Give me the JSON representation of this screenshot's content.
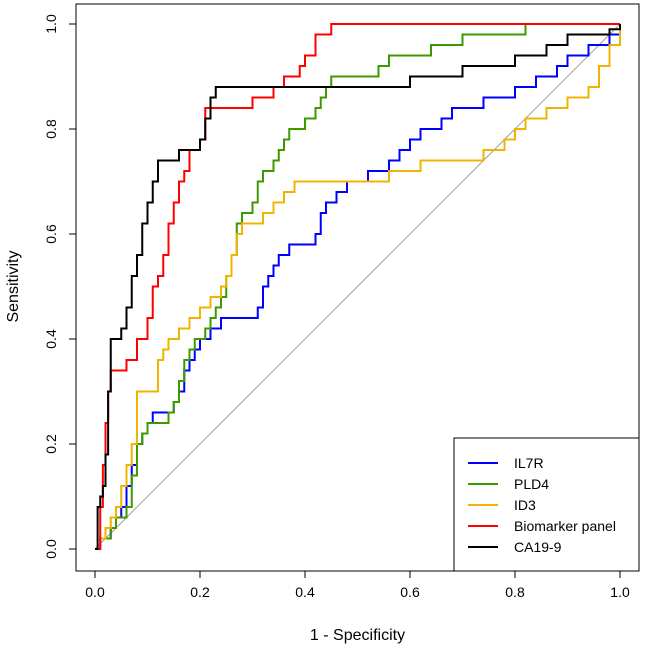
{
  "chart_data": {
    "type": "line",
    "title": "",
    "xlabel": "1 - Specificity",
    "ylabel": "Sensitivity",
    "xlim": [
      0,
      1
    ],
    "ylim": [
      0,
      1
    ],
    "xticks": [
      "0.0",
      "0.2",
      "0.4",
      "0.6",
      "0.8",
      "1.0"
    ],
    "yticks": [
      "0.0",
      "0.2",
      "0.4",
      "0.6",
      "0.8",
      "1.0"
    ],
    "grid": false,
    "legend_position": "bottom-right",
    "reference_line": {
      "name": "chance",
      "color": "#a0a0a0",
      "x": [
        0,
        1
      ],
      "y": [
        0,
        1
      ]
    },
    "series": [
      {
        "name": "IL7R",
        "color": "#0000ff",
        "x": [
          0,
          0.01,
          0.02,
          0.03,
          0.04,
          0.05,
          0.06,
          0.07,
          0.08,
          0.09,
          0.1,
          0.11,
          0.12,
          0.13,
          0.14,
          0.15,
          0.16,
          0.17,
          0.18,
          0.19,
          0.2,
          0.21,
          0.22,
          0.23,
          0.24,
          0.25,
          0.26,
          0.27,
          0.28,
          0.29,
          0.3,
          0.31,
          0.32,
          0.33,
          0.34,
          0.35,
          0.36,
          0.37,
          0.38,
          0.4,
          0.42,
          0.43,
          0.44,
          0.46,
          0.48,
          0.5,
          0.52,
          0.54,
          0.56,
          0.58,
          0.6,
          0.62,
          0.64,
          0.66,
          0.68,
          0.7,
          0.72,
          0.74,
          0.76,
          0.78,
          0.8,
          0.82,
          0.84,
          0.86,
          0.88,
          0.9,
          0.92,
          0.94,
          0.96,
          0.98,
          1.0,
          1.0
        ],
        "y": [
          0,
          0.02,
          0.02,
          0.04,
          0.06,
          0.08,
          0.12,
          0.16,
          0.2,
          0.22,
          0.24,
          0.26,
          0.26,
          0.26,
          0.26,
          0.28,
          0.3,
          0.34,
          0.36,
          0.38,
          0.4,
          0.4,
          0.42,
          0.42,
          0.44,
          0.44,
          0.44,
          0.44,
          0.44,
          0.44,
          0.44,
          0.46,
          0.5,
          0.52,
          0.54,
          0.56,
          0.56,
          0.58,
          0.58,
          0.58,
          0.6,
          0.64,
          0.66,
          0.68,
          0.7,
          0.7,
          0.72,
          0.72,
          0.74,
          0.76,
          0.78,
          0.8,
          0.8,
          0.82,
          0.84,
          0.84,
          0.84,
          0.86,
          0.86,
          0.86,
          0.88,
          0.88,
          0.9,
          0.9,
          0.92,
          0.94,
          0.94,
          0.96,
          0.96,
          0.98,
          0.96,
          1.0
        ]
      },
      {
        "name": "PLD4",
        "color": "#3c9a00",
        "x": [
          0,
          0.01,
          0.02,
          0.03,
          0.04,
          0.05,
          0.06,
          0.07,
          0.08,
          0.09,
          0.1,
          0.11,
          0.12,
          0.13,
          0.14,
          0.15,
          0.16,
          0.17,
          0.18,
          0.19,
          0.2,
          0.21,
          0.22,
          0.23,
          0.24,
          0.25,
          0.26,
          0.27,
          0.28,
          0.29,
          0.3,
          0.31,
          0.32,
          0.33,
          0.34,
          0.35,
          0.36,
          0.37,
          0.38,
          0.39,
          0.4,
          0.41,
          0.42,
          0.43,
          0.44,
          0.45,
          0.46,
          0.47,
          0.48,
          0.5,
          0.52,
          0.54,
          0.56,
          0.58,
          0.6,
          0.62,
          0.64,
          0.66,
          0.68,
          0.7,
          0.72,
          0.74,
          0.76,
          0.78,
          0.8,
          0.82,
          0.86,
          0.9,
          0.94,
          0.98,
          1.0
        ],
        "y": [
          0,
          0.02,
          0.02,
          0.04,
          0.06,
          0.06,
          0.08,
          0.14,
          0.2,
          0.22,
          0.24,
          0.24,
          0.24,
          0.24,
          0.26,
          0.28,
          0.32,
          0.36,
          0.38,
          0.4,
          0.4,
          0.42,
          0.44,
          0.46,
          0.48,
          0.52,
          0.56,
          0.62,
          0.64,
          0.64,
          0.66,
          0.7,
          0.72,
          0.72,
          0.74,
          0.76,
          0.78,
          0.8,
          0.8,
          0.8,
          0.82,
          0.82,
          0.84,
          0.86,
          0.88,
          0.9,
          0.9,
          0.9,
          0.9,
          0.9,
          0.9,
          0.92,
          0.94,
          0.94,
          0.94,
          0.94,
          0.96,
          0.96,
          0.96,
          0.98,
          0.98,
          0.98,
          0.98,
          0.98,
          0.98,
          1.0,
          1.0,
          1.0,
          1.0,
          1.0,
          1.0
        ]
      },
      {
        "name": "ID3",
        "color": "#f0b400",
        "x": [
          0,
          0.01,
          0.02,
          0.03,
          0.04,
          0.05,
          0.06,
          0.07,
          0.08,
          0.1,
          0.12,
          0.13,
          0.14,
          0.16,
          0.18,
          0.2,
          0.22,
          0.24,
          0.25,
          0.26,
          0.27,
          0.28,
          0.29,
          0.3,
          0.32,
          0.34,
          0.36,
          0.38,
          0.4,
          0.42,
          0.44,
          0.46,
          0.48,
          0.5,
          0.52,
          0.54,
          0.56,
          0.58,
          0.6,
          0.62,
          0.64,
          0.66,
          0.68,
          0.7,
          0.72,
          0.74,
          0.76,
          0.78,
          0.8,
          0.82,
          0.84,
          0.86,
          0.88,
          0.9,
          0.92,
          0.94,
          0.96,
          0.98,
          1.0
        ],
        "y": [
          0,
          0.02,
          0.04,
          0.06,
          0.08,
          0.12,
          0.16,
          0.2,
          0.3,
          0.3,
          0.36,
          0.38,
          0.4,
          0.42,
          0.44,
          0.46,
          0.48,
          0.5,
          0.52,
          0.56,
          0.6,
          0.62,
          0.62,
          0.62,
          0.64,
          0.66,
          0.68,
          0.7,
          0.7,
          0.7,
          0.7,
          0.7,
          0.7,
          0.7,
          0.7,
          0.7,
          0.72,
          0.72,
          0.72,
          0.74,
          0.74,
          0.74,
          0.74,
          0.74,
          0.74,
          0.76,
          0.76,
          0.78,
          0.8,
          0.82,
          0.82,
          0.84,
          0.84,
          0.86,
          0.86,
          0.88,
          0.92,
          0.96,
          1.0
        ]
      },
      {
        "name": "Biomarker panel",
        "color": "#ff0000",
        "x": [
          0,
          0.01,
          0.015,
          0.02,
          0.025,
          0.03,
          0.04,
          0.06,
          0.08,
          0.1,
          0.11,
          0.12,
          0.13,
          0.14,
          0.15,
          0.16,
          0.17,
          0.18,
          0.19,
          0.2,
          0.21,
          0.22,
          0.24,
          0.26,
          0.28,
          0.3,
          0.32,
          0.34,
          0.36,
          0.38,
          0.39,
          0.4,
          0.41,
          0.42,
          0.43,
          0.44,
          0.45,
          0.46,
          0.47,
          0.5,
          0.6,
          0.7,
          0.8,
          0.9,
          1.0
        ],
        "y": [
          0,
          0.08,
          0.16,
          0.24,
          0.3,
          0.34,
          0.34,
          0.36,
          0.4,
          0.44,
          0.5,
          0.52,
          0.56,
          0.62,
          0.66,
          0.7,
          0.72,
          0.76,
          0.76,
          0.78,
          0.84,
          0.84,
          0.84,
          0.84,
          0.84,
          0.86,
          0.86,
          0.88,
          0.9,
          0.9,
          0.92,
          0.94,
          0.94,
          0.98,
          0.98,
          0.98,
          1.0,
          1.0,
          1.0,
          1.0,
          1.0,
          1.0,
          1.0,
          1.0,
          1.0
        ]
      },
      {
        "name": "CA19-9",
        "color": "#000000",
        "x": [
          0,
          0.005,
          0.01,
          0.015,
          0.02,
          0.025,
          0.03,
          0.04,
          0.05,
          0.06,
          0.07,
          0.08,
          0.09,
          0.1,
          0.11,
          0.12,
          0.13,
          0.14,
          0.16,
          0.18,
          0.2,
          0.21,
          0.22,
          0.23,
          0.24,
          0.3,
          0.4,
          0.5,
          0.56,
          0.6,
          0.7,
          0.76,
          0.8,
          0.86,
          0.9,
          0.94,
          0.98,
          1.0
        ],
        "y": [
          0,
          0.08,
          0.1,
          0.12,
          0.18,
          0.3,
          0.4,
          0.4,
          0.42,
          0.46,
          0.52,
          0.56,
          0.62,
          0.66,
          0.7,
          0.74,
          0.74,
          0.74,
          0.76,
          0.76,
          0.78,
          0.82,
          0.86,
          0.88,
          0.88,
          0.88,
          0.88,
          0.88,
          0.88,
          0.9,
          0.92,
          0.92,
          0.94,
          0.96,
          0.98,
          0.98,
          0.99,
          1.0
        ]
      }
    ]
  }
}
